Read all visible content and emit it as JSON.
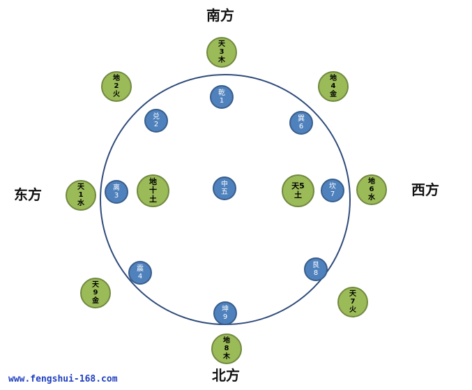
{
  "directions": {
    "south": "南方",
    "north": "北方",
    "east": "东方",
    "west": "西方"
  },
  "green_nodes": [
    {
      "id": "tian3",
      "lines": [
        "天",
        "3",
        "木"
      ]
    },
    {
      "id": "di2",
      "lines": [
        "地",
        "2",
        "火"
      ]
    },
    {
      "id": "di4",
      "lines": [
        "地",
        "4",
        "金"
      ]
    },
    {
      "id": "tian1",
      "lines": [
        "天",
        "1",
        "水"
      ]
    },
    {
      "id": "di10",
      "lines": [
        "地",
        "十",
        "土"
      ]
    },
    {
      "id": "tian5",
      "lines": [
        "天5",
        "土"
      ]
    },
    {
      "id": "di6",
      "lines": [
        "地",
        "6",
        "水"
      ]
    },
    {
      "id": "tian9",
      "lines": [
        "天",
        "9",
        "金"
      ]
    },
    {
      "id": "tian7",
      "lines": [
        "天",
        "7",
        "火"
      ]
    },
    {
      "id": "di8",
      "lines": [
        "地",
        "8",
        "木"
      ]
    }
  ],
  "blue_nodes": [
    {
      "id": "qian",
      "lines": [
        "乾",
        "1"
      ]
    },
    {
      "id": "dui",
      "lines": [
        "兑",
        "2"
      ]
    },
    {
      "id": "xun",
      "lines": [
        "巽",
        "6"
      ]
    },
    {
      "id": "li",
      "lines": [
        "离",
        "3"
      ]
    },
    {
      "id": "zhong",
      "lines": [
        "中",
        "五"
      ]
    },
    {
      "id": "kan",
      "lines": [
        "坎",
        "7"
      ]
    },
    {
      "id": "zhen",
      "lines": [
        "震",
        "4"
      ]
    },
    {
      "id": "gen",
      "lines": [
        "艮",
        "8"
      ]
    },
    {
      "id": "kun",
      "lines": [
        "坤",
        "9"
      ]
    }
  ],
  "watermark": "www.fengshui-168.com"
}
